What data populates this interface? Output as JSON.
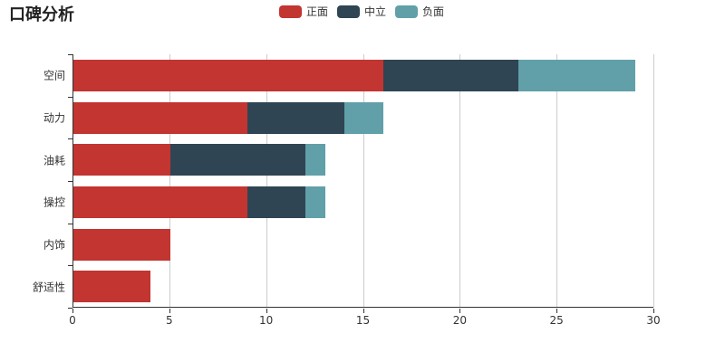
{
  "title": "口碑分析",
  "legend": {
    "items": [
      {
        "label": "正面",
        "color": "#c23531"
      },
      {
        "label": "中立",
        "color": "#2f4554"
      },
      {
        "label": "负面",
        "color": "#61a0a8"
      }
    ]
  },
  "chart_data": {
    "type": "bar",
    "orientation": "horizontal",
    "stacked": true,
    "title": "口碑分析",
    "categories": [
      "空间",
      "动力",
      "油耗",
      "操控",
      "内饰",
      "舒适性"
    ],
    "series": [
      {
        "name": "正面",
        "color": "#c23531",
        "values": [
          16,
          9,
          5,
          9,
          5,
          4
        ]
      },
      {
        "name": "中立",
        "color": "#2f4554",
        "values": [
          7,
          5,
          7,
          3,
          0,
          0
        ]
      },
      {
        "name": "负面",
        "color": "#61a0a8",
        "values": [
          6,
          2,
          1,
          1,
          0,
          0
        ]
      }
    ],
    "totals": [
      29,
      16,
      13,
      13,
      5,
      4
    ],
    "xlim": [
      0,
      30
    ],
    "x_ticks": [
      0,
      5,
      10,
      15,
      20,
      25,
      30
    ],
    "grid": true,
    "legend_position": "top",
    "axis_color": "#333333",
    "gridline_color": "#cccccc",
    "background": "#ffffff"
  }
}
